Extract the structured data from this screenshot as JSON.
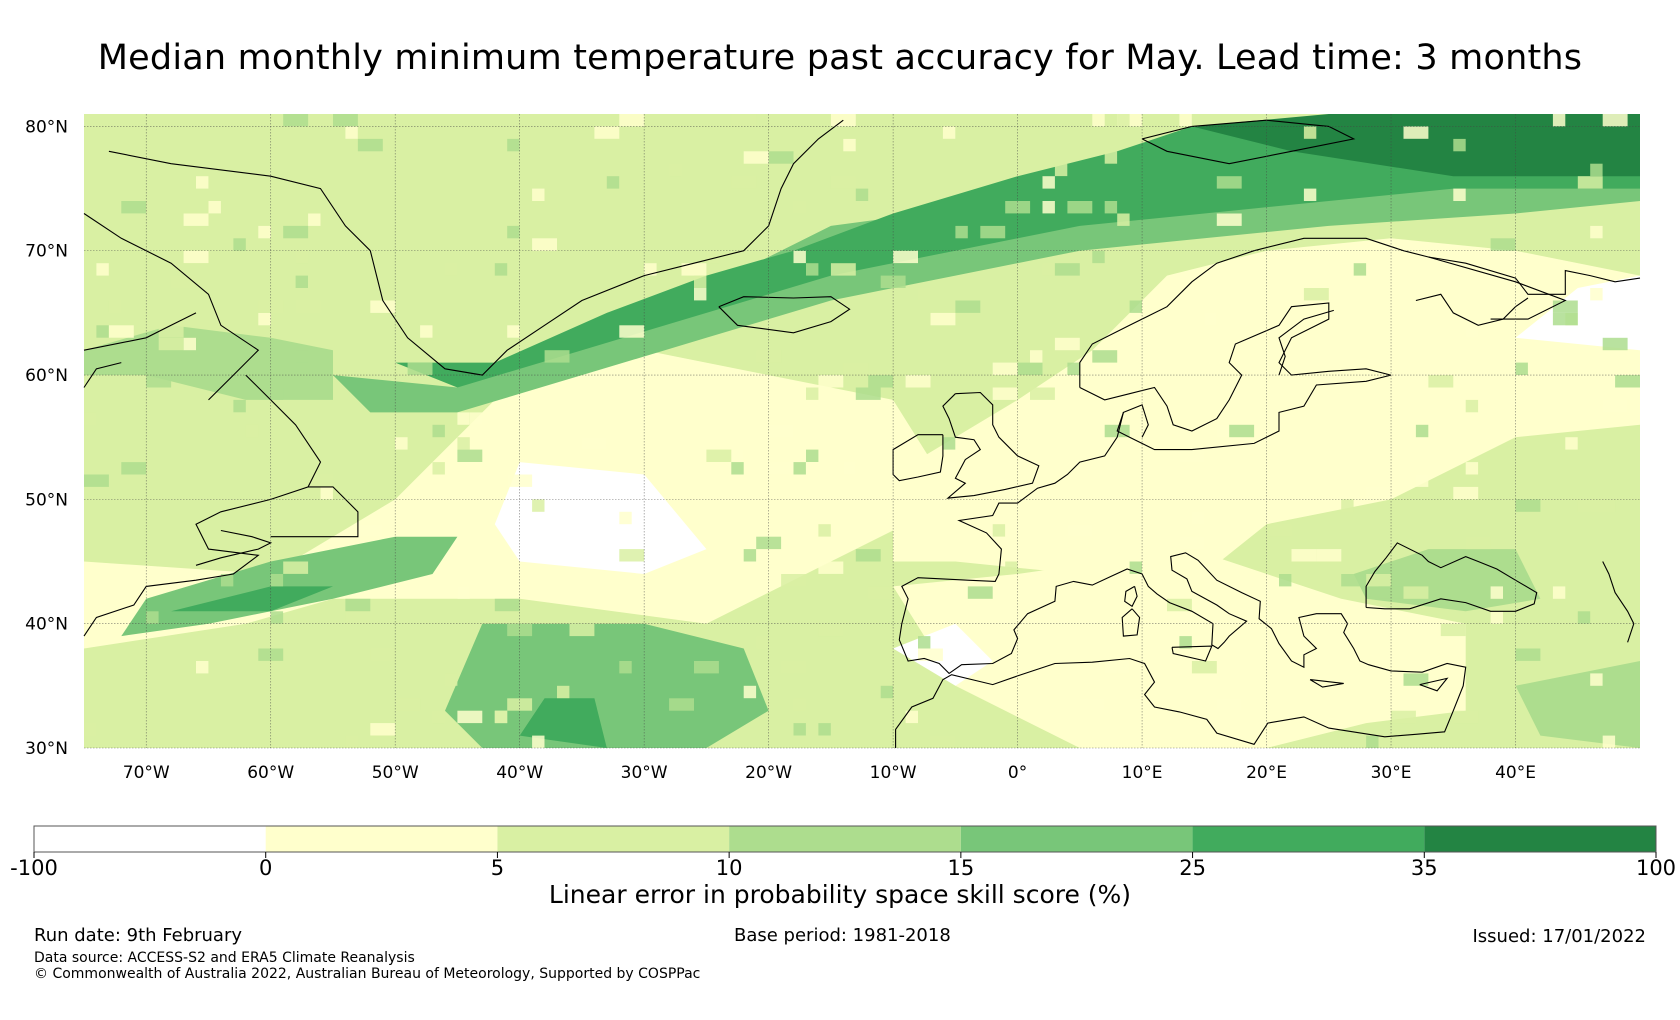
{
  "title": "Median monthly minimum temperature past accuracy for May. Lead time: 3 months",
  "map": {
    "lat_labels": [
      "80°N",
      "70°N",
      "60°N",
      "50°N",
      "40°N",
      "30°N"
    ],
    "lat_values": [
      80,
      70,
      60,
      50,
      40,
      30
    ],
    "lon_labels": [
      "70°W",
      "60°W",
      "50°W",
      "40°W",
      "30°W",
      "20°W",
      "10°W",
      "0°",
      "10°E",
      "20°E",
      "30°E",
      "40°E"
    ],
    "lon_values": [
      -70,
      -60,
      -50,
      -40,
      -30,
      -20,
      -10,
      0,
      10,
      20,
      30,
      40
    ],
    "lon_range": [
      -75,
      50
    ],
    "lat_range": [
      30,
      81
    ]
  },
  "colorbar": {
    "boundaries": [
      "-100",
      "0",
      "5",
      "10",
      "15",
      "25",
      "35",
      "100"
    ],
    "colors": [
      "#ffffff",
      "#ffffcc",
      "#d9f0a3",
      "#addd8e",
      "#78c679",
      "#41ab5d",
      "#238443"
    ],
    "title": "Linear error in probability space skill score (%)"
  },
  "footer": {
    "run_date": "Run date: 9th February",
    "base_period": "Base period: 1981-2018",
    "issued": "Issued: 17/01/2022",
    "data_source": "Data source: ACCESS-S2 and ERA5 Climate Reanalysis",
    "copyright": "© Commonwealth of Australia 2022, Australian Bureau of Meteorology, Supported by COSPPac"
  }
}
